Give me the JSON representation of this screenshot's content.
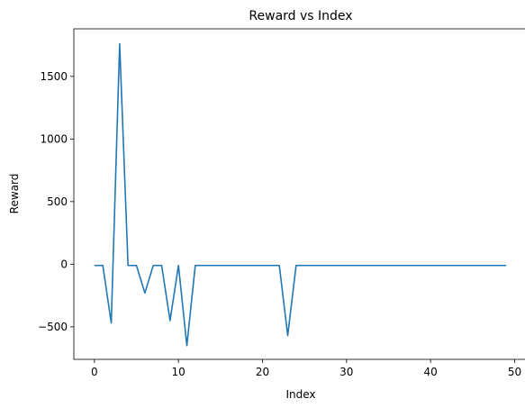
{
  "chart_data": {
    "type": "line",
    "title": "Reward vs Index",
    "xlabel": "Index",
    "ylabel": "Reward",
    "xlim": [
      -2.45,
      51.45
    ],
    "ylim": [
      -760,
      1880
    ],
    "xticks": [
      0,
      10,
      20,
      30,
      40,
      50
    ],
    "yticks": [
      -500,
      0,
      500,
      1000,
      1500
    ],
    "grid": false,
    "series": [
      {
        "color": "#1f77b4",
        "x": [
          0,
          1,
          2,
          3,
          4,
          5,
          6,
          7,
          8,
          9,
          10,
          11,
          12,
          13,
          14,
          15,
          16,
          17,
          18,
          19,
          20,
          21,
          22,
          23,
          24,
          25,
          26,
          27,
          28,
          29,
          30,
          31,
          32,
          33,
          34,
          35,
          36,
          37,
          38,
          39,
          40,
          41,
          42,
          43,
          44,
          45,
          46,
          47,
          48,
          49
        ],
        "y": [
          -10,
          -10,
          -470,
          1760,
          -10,
          -10,
          -230,
          -10,
          -10,
          -450,
          -10,
          -650,
          -10,
          -10,
          -10,
          -10,
          -10,
          -10,
          -10,
          -10,
          -10,
          -10,
          -10,
          -570,
          -10,
          -10,
          -10,
          -10,
          -10,
          -10,
          -10,
          -10,
          -10,
          -10,
          -10,
          -10,
          -10,
          -10,
          -10,
          -10,
          -10,
          -10,
          -10,
          -10,
          -10,
          -10,
          -10,
          -10,
          -10,
          -10
        ]
      }
    ]
  }
}
